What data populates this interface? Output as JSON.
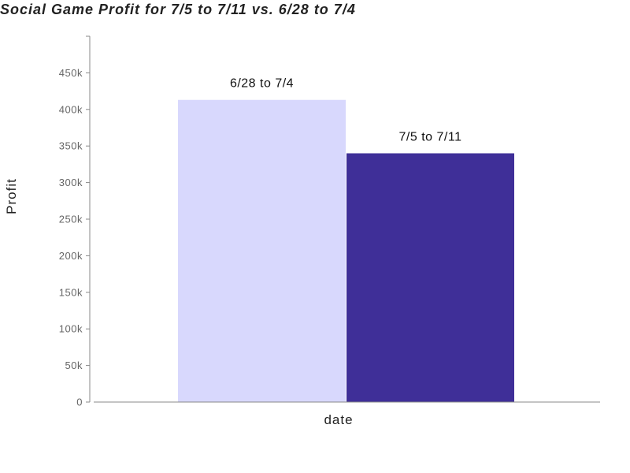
{
  "chart_data": {
    "type": "bar",
    "title": "Social Game Profit for 7/5 to 7/11 vs. 6/28 to 7/4",
    "xlabel": "date",
    "ylabel": "Profit",
    "ylim": [
      0,
      500000
    ],
    "yticks": [
      0,
      50000,
      100000,
      150000,
      200000,
      250000,
      300000,
      350000,
      400000,
      450000
    ],
    "ytick_labels": [
      "0",
      "50k",
      "100k",
      "150k",
      "200k",
      "250k",
      "300k",
      "350k",
      "400k",
      "450k"
    ],
    "grid": false,
    "legend": "none",
    "series": [
      {
        "label": "6/28 to 7/4",
        "value": 413000,
        "color": "#d8d8fd"
      },
      {
        "label": "7/5 to 7/11",
        "value": 340000,
        "color": "#3f2f98"
      }
    ]
  }
}
